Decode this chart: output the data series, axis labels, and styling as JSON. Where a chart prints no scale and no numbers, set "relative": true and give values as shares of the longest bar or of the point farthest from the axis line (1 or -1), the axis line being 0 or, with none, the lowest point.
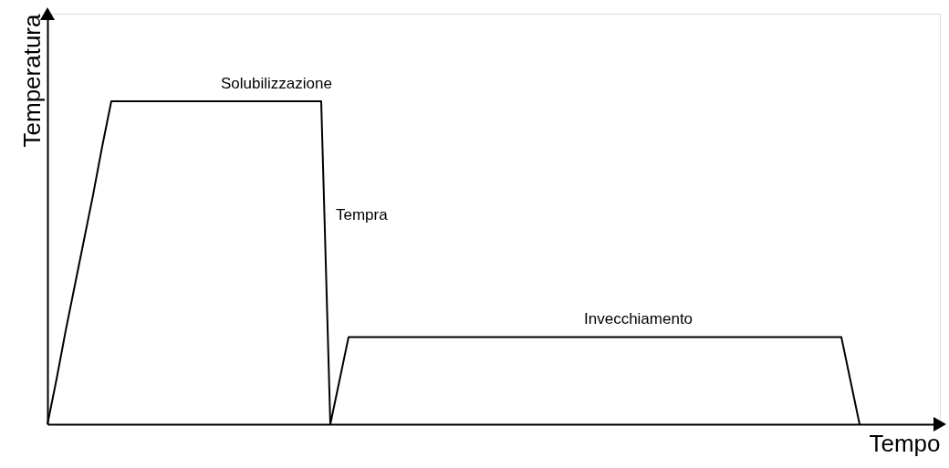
{
  "chart_data": {
    "type": "line",
    "relative": true,
    "xlabel": "Tempo",
    "ylabel": "Temperatura",
    "categories": [
      null,
      null,
      null,
      null,
      null,
      null,
      null,
      null,
      null,
      null,
      null,
      null,
      null,
      null,
      null,
      null,
      null,
      null,
      null,
      null,
      null,
      null,
      null,
      null,
      null,
      null,
      null,
      null,
      null,
      null,
      null,
      null,
      null,
      null,
      null,
      null,
      null,
      null,
      null,
      null,
      null,
      null,
      null,
      null,
      null,
      null,
      null,
      null,
      null,
      null,
      null,
      null,
      null,
      null,
      null,
      null,
      null,
      null,
      null,
      null,
      null,
      null,
      null,
      null,
      null,
      null,
      null,
      null,
      null,
      null,
      null,
      null,
      null,
      null,
      null,
      null,
      null,
      null,
      null,
      null,
      null,
      null,
      null,
      null,
      null,
      null,
      null,
      null,
      null,
      null
    ],
    "series": [
      {
        "color": "#000000",
        "values": [
          0,
          0.14,
          0.29,
          0.43,
          0.57,
          0.71,
          0.86,
          1,
          1,
          1,
          1,
          1,
          1,
          1,
          1,
          1,
          1,
          1,
          1,
          1,
          1,
          1,
          1,
          1,
          1,
          1,
          1,
          1,
          1,
          1,
          1,
          0,
          0.135,
          0.27,
          0.27,
          0.27,
          0.27,
          0.27,
          0.27,
          0.27,
          0.27,
          0.27,
          0.27,
          0.27,
          0.27,
          0.27,
          0.27,
          0.27,
          0.27,
          0.27,
          0.27,
          0.27,
          0.27,
          0.27,
          0.27,
          0.27,
          0.27,
          0.27,
          0.27,
          0.27,
          0.27,
          0.27,
          0.27,
          0.27,
          0.27,
          0.27,
          0.27,
          0.27,
          0.27,
          0.27,
          0.27,
          0.27,
          0.27,
          0.27,
          0.27,
          0.27,
          0.27,
          0.27,
          0.27,
          0.27,
          0.27,
          0.27,
          0.27,
          0.27,
          0.27,
          0.27,
          0.27,
          0.27,
          0.135,
          0
        ]
      }
    ],
    "annotations": [
      "Solubilizzazione",
      "Tempra",
      "Invecchiamento"
    ],
    "grid": false,
    "marker": "none",
    "line_style": "solid"
  }
}
